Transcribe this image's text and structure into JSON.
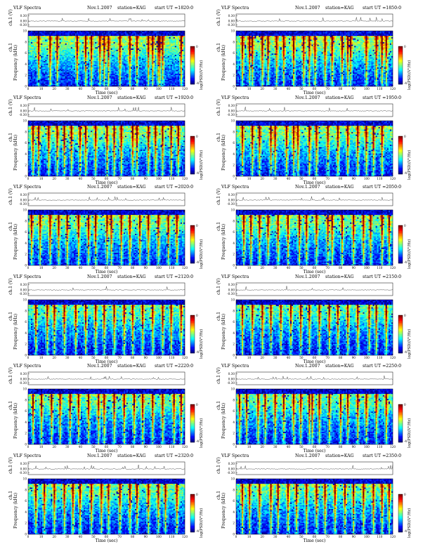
{
  "figure": {
    "rows": 6,
    "cols": 2
  },
  "chart_data": [
    {
      "type": "heatmap",
      "panel": "r0c0",
      "kind": "VLF Spectra",
      "date": "Nov.1.2007",
      "station": "station=KAG",
      "start": "start  UT =1820:0",
      "waveform_ylabel": "ch.1 (V)",
      "waveform_yticks": [
        "0.30",
        "0.00",
        "-0.30"
      ],
      "ylabel": "Frequency (kHz)",
      "ylabel_prefix": "ch.1",
      "yticks": [
        "0",
        "2",
        "4",
        "6",
        "8",
        "10"
      ],
      "ylim": [
        0,
        10
      ],
      "xlabel": "Time (sec)",
      "xticks": [
        "0",
        "10",
        "20",
        "30",
        "40",
        "50",
        "60",
        "70",
        "80",
        "90",
        "100",
        "110",
        "120"
      ],
      "xlim": [
        0,
        120
      ],
      "colorbar_label": "log(PSD)(V²/Hz)",
      "colorbar_ticks": [
        "0",
        "-4"
      ],
      "bursts": [
        8,
        16,
        22,
        37,
        44,
        48,
        55,
        58,
        62,
        70,
        78,
        84,
        93,
        96,
        100,
        101,
        104,
        118
      ],
      "intensity": 0.72
    },
    {
      "type": "heatmap",
      "panel": "r0c1",
      "kind": "VLF Spectra",
      "date": "Nov.1.2007",
      "station": "station=KAG",
      "start": "start  UT =1850:0",
      "waveform_ylabel": "ch.1 (V)",
      "waveform_yticks": [
        "0.30",
        "0.00",
        "-0.30"
      ],
      "ylabel": "Frequency (kHz)",
      "ylabel_prefix": "ch.1",
      "yticks": [
        "0",
        "2",
        "4",
        "6",
        "8",
        "10"
      ],
      "ylim": [
        0,
        10
      ],
      "xlabel": "Time (sec)",
      "xticks": [
        "0",
        "10",
        "20",
        "30",
        "40",
        "50",
        "60",
        "70",
        "80",
        "90",
        "100",
        "110",
        "120"
      ],
      "xlim": [
        0,
        120
      ],
      "colorbar_label": "log(PSD)(V²/Hz)",
      "colorbar_ticks": [
        "0",
        "-4"
      ],
      "bursts": [
        4,
        10,
        12,
        20,
        24,
        31,
        36,
        44,
        52,
        56,
        60,
        68,
        74,
        82,
        86,
        88,
        100,
        108,
        112,
        116
      ],
      "intensity": 0.72
    },
    {
      "type": "heatmap",
      "panel": "r1c0",
      "kind": "VLF Spectra",
      "date": "Nov.1.2007",
      "station": "station=KAG",
      "start": "start  UT =1920:0",
      "waveform_ylabel": "ch.1 (V)",
      "waveform_yticks": [
        "0.30",
        "0.00",
        "-0.30"
      ],
      "ylabel": "Frequency (kHz)",
      "ylabel_prefix": "ch.1",
      "yticks": [
        "0",
        "2",
        "4",
        "6",
        "8",
        "10"
      ],
      "ylim": [
        0,
        10
      ],
      "xlabel": "Time (sec)",
      "xticks": [
        "0",
        "10",
        "20",
        "30",
        "40",
        "50",
        "60",
        "70",
        "80",
        "90",
        "100",
        "110",
        "120"
      ],
      "xlim": [
        0,
        120
      ],
      "colorbar_label": "log(PSD)(V²/Hz)",
      "colorbar_ticks": [
        "0",
        "-4"
      ],
      "bursts": [
        3,
        8,
        15,
        22,
        27,
        33,
        40,
        44,
        52,
        60,
        66,
        72,
        80,
        84,
        92,
        98,
        104,
        110,
        116
      ],
      "intensity": 0.66
    },
    {
      "type": "heatmap",
      "panel": "r1c1",
      "kind": "VLF Spectra",
      "date": "Nov.1.2007",
      "station": "station=KAG",
      "start": "start  UT =1950:0",
      "waveform_ylabel": "ch.1 (V)",
      "waveform_yticks": [
        "0.30",
        "0.00",
        "-0.30"
      ],
      "ylabel": "Frequency (kHz)",
      "ylabel_prefix": "ch.1",
      "yticks": [
        "0",
        "2",
        "4",
        "6",
        "8",
        "10"
      ],
      "ylim": [
        0,
        10
      ],
      "xlabel": "Time (sec)",
      "xticks": [
        "0",
        "10",
        "20",
        "30",
        "40",
        "50",
        "60",
        "70",
        "80",
        "90",
        "100",
        "110",
        "120"
      ],
      "xlim": [
        0,
        120
      ],
      "colorbar_label": "log(PSD)(V²/Hz)",
      "colorbar_ticks": [
        "0",
        "-4"
      ],
      "bursts": [
        4,
        12,
        18,
        26,
        30,
        38,
        44,
        47,
        56,
        62,
        70,
        78,
        86,
        94,
        100,
        106,
        112
      ],
      "intensity": 0.64
    },
    {
      "type": "heatmap",
      "panel": "r2c0",
      "kind": "VLF Spectra",
      "date": "Nov.1.2007",
      "station": "station=KAG",
      "start": "start  UT =2020:0",
      "waveform_ylabel": "ch.1 (V)",
      "waveform_yticks": [
        "0.30",
        "0.00",
        "-0.30"
      ],
      "ylabel": "Frequency (kHz)",
      "ylabel_prefix": "ch.1",
      "yticks": [
        "0",
        "2",
        "4",
        "6",
        "8",
        "10"
      ],
      "ylim": [
        0,
        10
      ],
      "xlabel": "Time (sec)",
      "xticks": [
        "0",
        "10",
        "20",
        "30",
        "40",
        "50",
        "60",
        "70",
        "80",
        "90",
        "100",
        "110",
        "120"
      ],
      "xlim": [
        0,
        120
      ],
      "colorbar_label": "log(PSD)(V²/Hz)",
      "colorbar_ticks": [
        "0",
        "-4"
      ],
      "bursts": [
        2,
        9,
        16,
        23,
        30,
        38,
        46,
        52,
        60,
        64,
        72,
        78,
        86,
        92,
        100,
        108,
        115
      ],
      "intensity": 0.64
    },
    {
      "type": "heatmap",
      "panel": "r2c1",
      "kind": "VLF Spectra",
      "date": "Nov.1.2007",
      "station": "station=KAG",
      "start": "start  UT =2050:0",
      "waveform_ylabel": "ch.1 (V)",
      "waveform_yticks": [
        "0.30",
        "0.00",
        "-0.30"
      ],
      "ylabel": "Frequency (kHz)",
      "ylabel_prefix": "ch.1",
      "yticks": [
        "0",
        "2",
        "4",
        "6",
        "8",
        "10"
      ],
      "ylim": [
        0,
        10
      ],
      "xlabel": "Time (sec)",
      "xticks": [
        "0",
        "10",
        "20",
        "30",
        "40",
        "50",
        "60",
        "70",
        "80",
        "90",
        "100",
        "110",
        "120"
      ],
      "xlim": [
        0,
        120
      ],
      "colorbar_label": "log(PSD)(V²/Hz)",
      "colorbar_ticks": [
        "0",
        "-4"
      ],
      "bursts": [
        5,
        11,
        18,
        24,
        32,
        40,
        48,
        54,
        62,
        70,
        74,
        82,
        90,
        98,
        104,
        112,
        118
      ],
      "intensity": 0.6
    },
    {
      "type": "heatmap",
      "panel": "r3c0",
      "kind": "VLF Spectra",
      "date": "Nov.1.2007",
      "station": "station=KAG",
      "start": "start  UT =2120:0",
      "waveform_ylabel": "ch.1 (V)",
      "waveform_yticks": [
        "0.30",
        "0.00",
        "-0.30"
      ],
      "ylabel": "Frequency (kHz)",
      "ylabel_prefix": "ch.1",
      "yticks": [
        "0",
        "2",
        "4",
        "6",
        "8",
        "10"
      ],
      "ylim": [
        0,
        10
      ],
      "xlabel": "Time (sec)",
      "xticks": [
        "0",
        "10",
        "20",
        "30",
        "40",
        "50",
        "60",
        "70",
        "80",
        "90",
        "100",
        "110",
        "120"
      ],
      "xlim": [
        0,
        120
      ],
      "colorbar_label": "log(PSD)(V²/Hz)",
      "colorbar_ticks": [
        "0",
        "-4"
      ],
      "bursts": [
        6,
        14,
        20,
        28,
        36,
        44,
        52,
        58,
        66,
        74,
        80,
        88,
        96,
        104,
        110,
        118
      ],
      "intensity": 0.5
    },
    {
      "type": "heatmap",
      "panel": "r3c1",
      "kind": "VLF Spectra",
      "date": "Nov.1.2007",
      "station": "station=KAG",
      "start": "start  UT =2150:0",
      "waveform_ylabel": "ch.1 (V)",
      "waveform_yticks": [
        "0.30",
        "0.00",
        "-0.30"
      ],
      "ylabel": "Frequency (kHz)",
      "ylabel_prefix": "ch.1",
      "yticks": [
        "0",
        "2",
        "4",
        "6",
        "8",
        "10"
      ],
      "ylim": [
        0,
        10
      ],
      "xlabel": "Time (sec)",
      "xticks": [
        "0",
        "10",
        "20",
        "30",
        "40",
        "50",
        "60",
        "70",
        "80",
        "90",
        "100",
        "110",
        "120"
      ],
      "xlim": [
        0,
        120
      ],
      "colorbar_label": "log(PSD)(V²/Hz)",
      "colorbar_ticks": [
        "0",
        "-4"
      ],
      "bursts": [
        4,
        12,
        20,
        26,
        34,
        42,
        50,
        56,
        64,
        72,
        78,
        86,
        94,
        102,
        108,
        116
      ],
      "intensity": 0.48
    },
    {
      "type": "heatmap",
      "panel": "r4c0",
      "kind": "VLF Spectra",
      "date": "Nov.1.2007",
      "station": "station=KAG",
      "start": "start  UT =2220:0",
      "waveform_ylabel": "ch.1 (V)",
      "waveform_yticks": [
        "0.30",
        "0.00",
        "-0.30"
      ],
      "ylabel": "Frequency (kHz)",
      "ylabel_prefix": "ch.1",
      "yticks": [
        "0",
        "2",
        "4",
        "6",
        "8",
        "10"
      ],
      "ylim": [
        0,
        10
      ],
      "xlabel": "Time (sec)",
      "xticks": [
        "0",
        "10",
        "20",
        "30",
        "40",
        "50",
        "60",
        "70",
        "80",
        "90",
        "100",
        "110",
        "120"
      ],
      "xlim": [
        0,
        120
      ],
      "colorbar_label": "log(PSD)(V²/Hz)",
      "colorbar_ticks": [
        "0",
        "-4"
      ],
      "bursts": [
        3,
        10,
        18,
        24,
        32,
        38,
        46,
        54,
        58,
        66,
        74,
        82,
        88,
        96,
        104,
        112,
        118
      ],
      "intensity": 0.56
    },
    {
      "type": "heatmap",
      "panel": "r4c1",
      "kind": "VLF Spectra",
      "date": "Nov.1.2007",
      "station": "station=KAG",
      "start": "start  UT =2250:0",
      "waveform_ylabel": "ch.1 (V)",
      "waveform_yticks": [
        "0.30",
        "0.00",
        "-0.30"
      ],
      "ylabel": "Frequency (kHz)",
      "ylabel_prefix": "ch.1",
      "yticks": [
        "0",
        "2",
        "4",
        "6",
        "8",
        "10"
      ],
      "ylim": [
        0,
        10
      ],
      "xlabel": "Time (sec)",
      "xticks": [
        "0",
        "10",
        "20",
        "30",
        "40",
        "50",
        "60",
        "70",
        "80",
        "90",
        "100",
        "110",
        "120"
      ],
      "xlim": [
        0,
        120
      ],
      "colorbar_label": "log(PSD)(V²/Hz)",
      "colorbar_ticks": [
        "0",
        "-4"
      ],
      "bursts": [
        2,
        8,
        16,
        22,
        30,
        36,
        44,
        50,
        56,
        58,
        64,
        72,
        80,
        86,
        94,
        100,
        108,
        116
      ],
      "intensity": 0.54
    },
    {
      "type": "heatmap",
      "panel": "r5c0",
      "kind": "VLF Spectra",
      "date": "Nov.1.2007",
      "station": "station=KAG",
      "start": "start  UT =2320:0",
      "waveform_ylabel": "ch.1 (V)",
      "waveform_yticks": [
        "0.30",
        "0.00",
        "-0.30"
      ],
      "ylabel": "Frequency (kHz)",
      "ylabel_prefix": "ch.1",
      "yticks": [
        "0",
        "2",
        "4",
        "6",
        "8",
        "10"
      ],
      "ylim": [
        0,
        10
      ],
      "xlabel": "Time (sec)",
      "xticks": [
        "0",
        "10",
        "20",
        "30",
        "40",
        "50",
        "60",
        "70",
        "80",
        "90",
        "100",
        "110",
        "120"
      ],
      "xlim": [
        0,
        120
      ],
      "colorbar_label": "log(PSD)(V²/Hz)",
      "colorbar_ticks": [
        "0",
        "-4"
      ],
      "bursts": [
        5,
        12,
        20,
        28,
        34,
        40,
        48,
        56,
        62,
        70,
        78,
        84,
        92,
        100,
        106,
        114
      ],
      "intensity": 0.56
    },
    {
      "type": "heatmap",
      "panel": "r5c1",
      "kind": "VLF Spectra",
      "date": "Nov.1.2007",
      "station": "station=KAG",
      "start": "start  UT =2350:0",
      "waveform_ylabel": "ch.1 (V)",
      "waveform_yticks": [
        "0.30",
        "0.00",
        "-0.30"
      ],
      "ylabel": "Frequency (kHz)",
      "ylabel_prefix": "ch.1",
      "yticks": [
        "0",
        "2",
        "4",
        "6",
        "8",
        "10"
      ],
      "ylim": [
        0,
        10
      ],
      "xlabel": "Time (sec)",
      "xticks": [
        "0",
        "10",
        "20",
        "30",
        "40",
        "50",
        "60",
        "70",
        "80",
        "90",
        "100",
        "110",
        "120"
      ],
      "xlim": [
        0,
        120
      ],
      "colorbar_label": "log(PSD)(V²/Hz)",
      "colorbar_ticks": [
        "0",
        "-4"
      ],
      "bursts": [
        4,
        10,
        18,
        26,
        32,
        40,
        46,
        54,
        62,
        68,
        76,
        84,
        90,
        98,
        106,
        112,
        118
      ],
      "intensity": 0.55
    }
  ]
}
